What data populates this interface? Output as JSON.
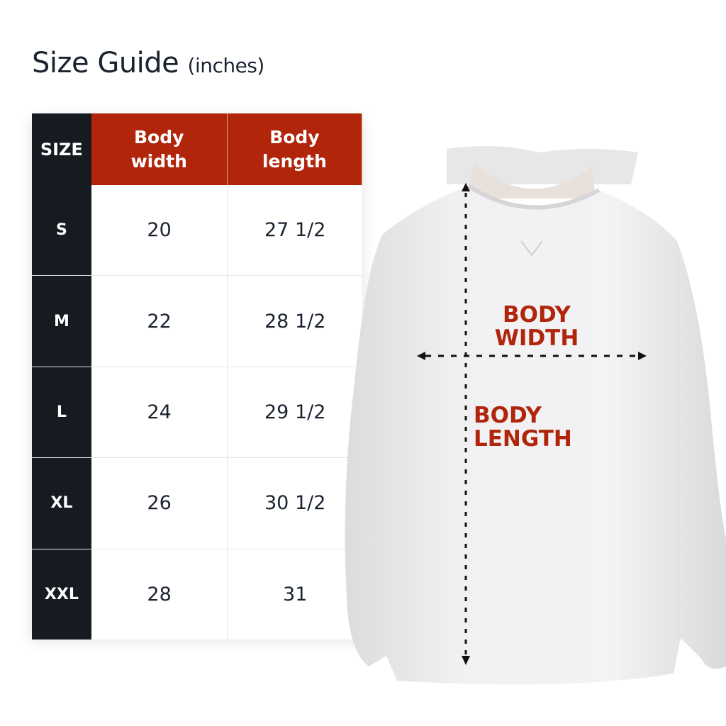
{
  "title": {
    "main": "Size Guide",
    "unit": "(inches)"
  },
  "table": {
    "headers": [
      "SIZE",
      "Body width",
      "Body length"
    ],
    "rows": [
      {
        "size": "S",
        "width": "20",
        "length": "27 1/2"
      },
      {
        "size": "M",
        "width": "22",
        "length": "28 1/2"
      },
      {
        "size": "L",
        "width": "24",
        "length": "29 1/2"
      },
      {
        "size": "XL",
        "width": "26",
        "length": "30 1/2"
      },
      {
        "size": "XXL",
        "width": "28",
        "length": "31"
      }
    ]
  },
  "diagram": {
    "width_label": "BODY WIDTH",
    "length_label": "BODY LENGTH"
  },
  "colors": {
    "accent": "#b1250b",
    "dark": "#161b22"
  }
}
